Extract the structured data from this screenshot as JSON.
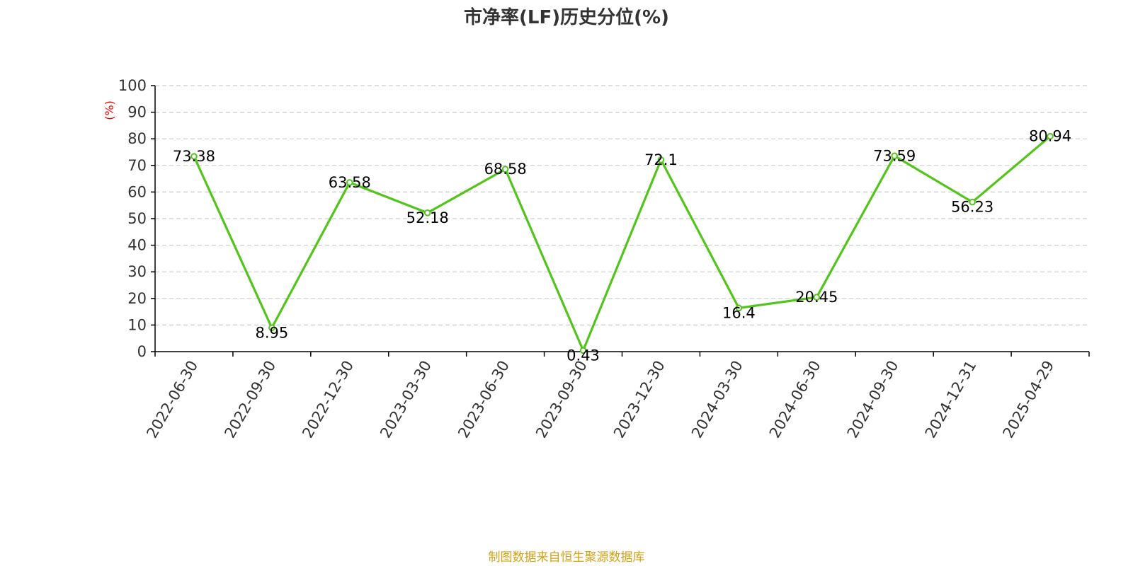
{
  "chart_data": {
    "type": "line",
    "title": "市净率(LF)历史分位(%)",
    "ylabel": "(%)",
    "xlabel": "",
    "categories": [
      "2022-06-30",
      "2022-09-30",
      "2022-12-30",
      "2023-03-30",
      "2023-06-30",
      "2023-09-30",
      "2023-12-30",
      "2024-03-30",
      "2024-06-30",
      "2024-09-30",
      "2024-12-31",
      "2025-04-29"
    ],
    "series": [
      {
        "values": [
          73.38,
          8.95,
          63.58,
          52.18,
          68.58,
          0.43,
          72.1,
          16.4,
          20.45,
          73.59,
          56.23,
          80.94
        ],
        "labels": [
          "73.38",
          "8.95",
          "63.58",
          "52.18",
          "68.58",
          "0.43",
          "72.1",
          "16.4",
          "20.45",
          "73.59",
          "56.23",
          "80.94"
        ],
        "color": "#52c41a"
      }
    ],
    "ylim": [
      0,
      100
    ],
    "yticks": [
      "0",
      "10",
      "20",
      "30",
      "40",
      "50",
      "60",
      "70",
      "80",
      "90",
      "100"
    ],
    "grid": true,
    "legend": "none",
    "source": "制图数据来自恒生聚源数据库"
  },
  "colors": {
    "line": "#52c41a",
    "ylabel": "#ff0000",
    "source": "#d4a017",
    "grid": "#cccccc",
    "axis": "#000000",
    "text": "#000000",
    "tick_text": "#333333"
  }
}
